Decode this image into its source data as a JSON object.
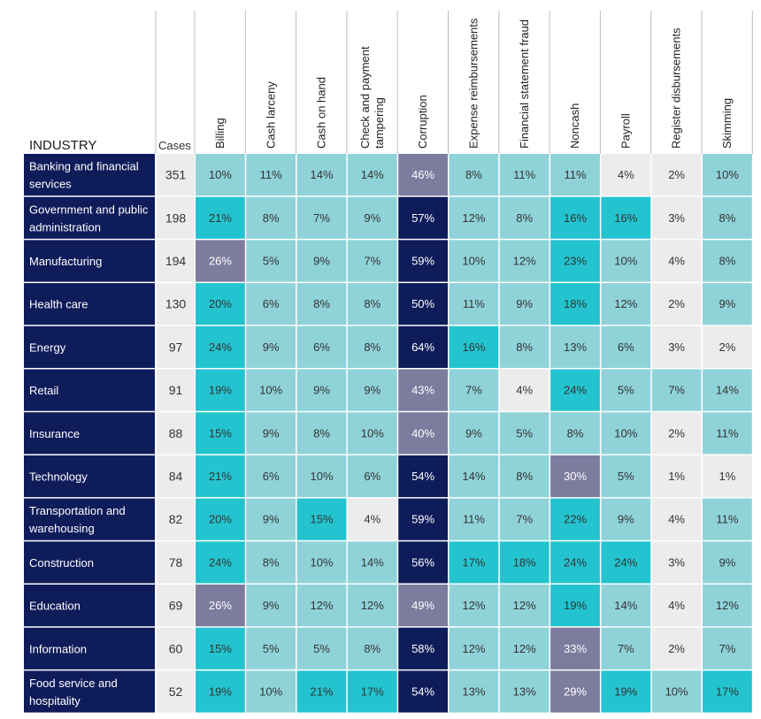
{
  "chart_data": {
    "type": "heatmap",
    "row_header": "INDUSTRY",
    "cases_header": "Cases",
    "columns": [
      [
        "Billing"
      ],
      [
        "Cash larceny"
      ],
      [
        "Cash on hand"
      ],
      [
        "Check and payment",
        "tampering"
      ],
      [
        "Corruption"
      ],
      [
        "Expense reimbursements"
      ],
      [
        "Financial statement fraud"
      ],
      [
        "Noncash"
      ],
      [
        "Payroll"
      ],
      [
        "Register disbursements"
      ],
      [
        "Skimming"
      ]
    ],
    "rows": [
      {
        "industry": [
          "Banking and financial",
          "services"
        ],
        "cases": 351,
        "values": [
          10,
          11,
          14,
          14,
          46,
          8,
          11,
          11,
          4,
          2,
          10
        ]
      },
      {
        "industry": [
          "Government and public",
          "administration"
        ],
        "cases": 198,
        "values": [
          21,
          8,
          7,
          9,
          57,
          12,
          8,
          16,
          16,
          3,
          8
        ]
      },
      {
        "industry": [
          "Manufacturing"
        ],
        "cases": 194,
        "values": [
          26,
          5,
          9,
          7,
          59,
          10,
          12,
          23,
          10,
          4,
          8
        ]
      },
      {
        "industry": [
          "Health care"
        ],
        "cases": 130,
        "values": [
          20,
          6,
          8,
          8,
          50,
          11,
          9,
          18,
          12,
          2,
          9
        ]
      },
      {
        "industry": [
          "Energy"
        ],
        "cases": 97,
        "values": [
          24,
          9,
          6,
          8,
          64,
          16,
          8,
          13,
          6,
          3,
          2
        ]
      },
      {
        "industry": [
          "Retail"
        ],
        "cases": 91,
        "values": [
          19,
          10,
          9,
          9,
          43,
          7,
          4,
          24,
          5,
          7,
          14
        ]
      },
      {
        "industry": [
          "Insurance"
        ],
        "cases": 88,
        "values": [
          15,
          9,
          8,
          10,
          40,
          9,
          5,
          8,
          10,
          2,
          11
        ]
      },
      {
        "industry": [
          "Technology"
        ],
        "cases": 84,
        "values": [
          21,
          6,
          10,
          6,
          54,
          14,
          8,
          30,
          5,
          1,
          1
        ]
      },
      {
        "industry": [
          "Transportation and",
          "warehousing"
        ],
        "cases": 82,
        "values": [
          20,
          9,
          15,
          4,
          59,
          11,
          7,
          22,
          9,
          4,
          11
        ]
      },
      {
        "industry": [
          "Construction"
        ],
        "cases": 78,
        "values": [
          24,
          8,
          10,
          14,
          56,
          17,
          18,
          24,
          24,
          3,
          9
        ]
      },
      {
        "industry": [
          "Education"
        ],
        "cases": 69,
        "values": [
          26,
          9,
          12,
          12,
          49,
          12,
          12,
          19,
          14,
          4,
          12
        ]
      },
      {
        "industry": [
          "Information"
        ],
        "cases": 60,
        "values": [
          15,
          5,
          5,
          8,
          58,
          12,
          12,
          33,
          7,
          2,
          7
        ]
      },
      {
        "industry": [
          "Food service and",
          "hospitality"
        ],
        "cases": 52,
        "values": [
          19,
          10,
          21,
          17,
          54,
          13,
          13,
          29,
          19,
          10,
          17
        ]
      }
    ],
    "value_suffix": "%",
    "colors": {
      "industry_bg": "#0f1c5a",
      "cases_bg": "#ececec",
      "lowest": "#ececec",
      "low": "#8fd3d9",
      "high": "#23c4cf",
      "highest": "#7d7b9e",
      "top": "#0f1c5a",
      "line": "#bdbdbd",
      "text_dark": "#333333",
      "text_light": "#ffffff"
    }
  }
}
